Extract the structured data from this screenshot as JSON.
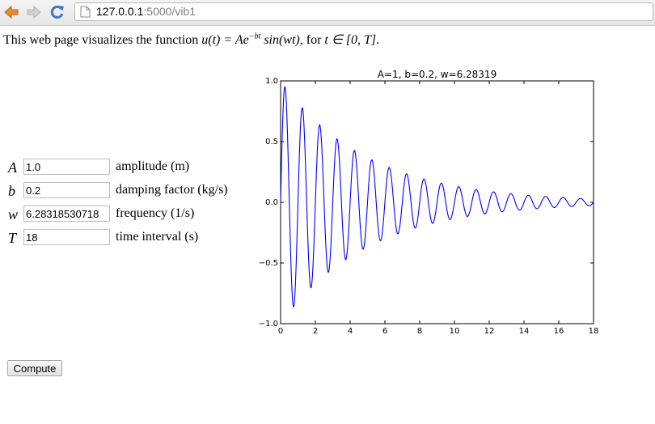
{
  "browser": {
    "url_host": "127.0.0.1",
    "url_path": ":5000/vib1"
  },
  "intro": {
    "prefix": "This web page visualizes the function ",
    "func_lhs": "u(t) = Ae",
    "func_exp": "−bt",
    "func_rhs": " sin(wt)",
    "mid": ", for ",
    "domain": "t ∈ [0, T]",
    "suffix": "."
  },
  "form": {
    "fields": [
      {
        "symbol": "A",
        "value": "1.0",
        "description": "amplitude (m)"
      },
      {
        "symbol": "b",
        "value": "0.2",
        "description": "damping factor (kg/s)"
      },
      {
        "symbol": "w",
        "value": "6.28318530718",
        "description": "frequency (1/s)"
      },
      {
        "symbol": "T",
        "value": "18",
        "description": "time interval (s)"
      }
    ],
    "submit_label": "Compute"
  },
  "chart_data": {
    "type": "line",
    "title": "A=1, b=0.2, w=6.28319",
    "function": "A*exp(-b*t)*sin(w*t)",
    "params": {
      "A": 1.0,
      "b": 0.2,
      "w": 6.28319
    },
    "xlim": [
      0,
      18
    ],
    "ylim": [
      -1.0,
      1.0
    ],
    "xticks": [
      "0",
      "2",
      "4",
      "6",
      "8",
      "10",
      "12",
      "14",
      "16",
      "18"
    ],
    "yticks": [
      "1.0",
      "0.5",
      "0.0",
      "−0.5",
      "−1.0"
    ],
    "yticks_values": [
      1.0,
      0.5,
      0.0,
      -0.5,
      -1.0
    ],
    "xlabel": "",
    "ylabel": "",
    "grid": false,
    "series": [
      {
        "color": "#0000ff"
      }
    ]
  }
}
